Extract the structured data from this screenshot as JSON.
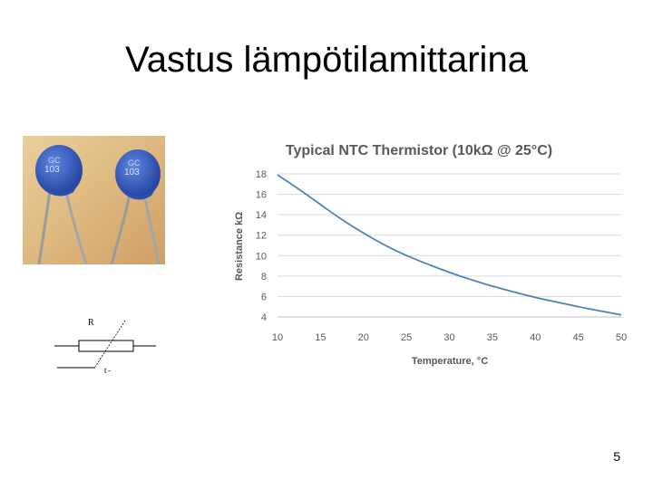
{
  "slide": {
    "title": "Vastus lämpötilamittarina",
    "page_number": "5"
  },
  "photo": {
    "component_marking_1": "103",
    "component_marking_2": "103"
  },
  "symbol": {
    "resistor_label": "R",
    "temperature_label": "t",
    "temperature_sign": "-"
  },
  "chart_data": {
    "type": "line",
    "title": "Typical NTC Thermistor (10kΩ @ 25°C)",
    "xlabel": "Temperature, °C",
    "ylabel": "Resistance kΩ",
    "xlim": [
      10,
      50
    ],
    "ylim": [
      4,
      18
    ],
    "xticks": [
      10,
      15,
      20,
      25,
      30,
      35,
      40,
      45,
      50
    ],
    "yticks": [
      4,
      6,
      8,
      10,
      12,
      14,
      16,
      18
    ],
    "grid": true,
    "series_color": "#4f81bd",
    "x": [
      10,
      12.5,
      15,
      17.5,
      20,
      22.5,
      25,
      27.5,
      30,
      32.5,
      35,
      37.5,
      40,
      42.5,
      45,
      47.5,
      50
    ],
    "y": [
      17.9,
      16.5,
      15.0,
      13.5,
      12.2,
      11.0,
      10.0,
      9.15,
      8.35,
      7.65,
      7.0,
      6.45,
      5.9,
      5.45,
      5.0,
      4.6,
      4.2
    ]
  }
}
